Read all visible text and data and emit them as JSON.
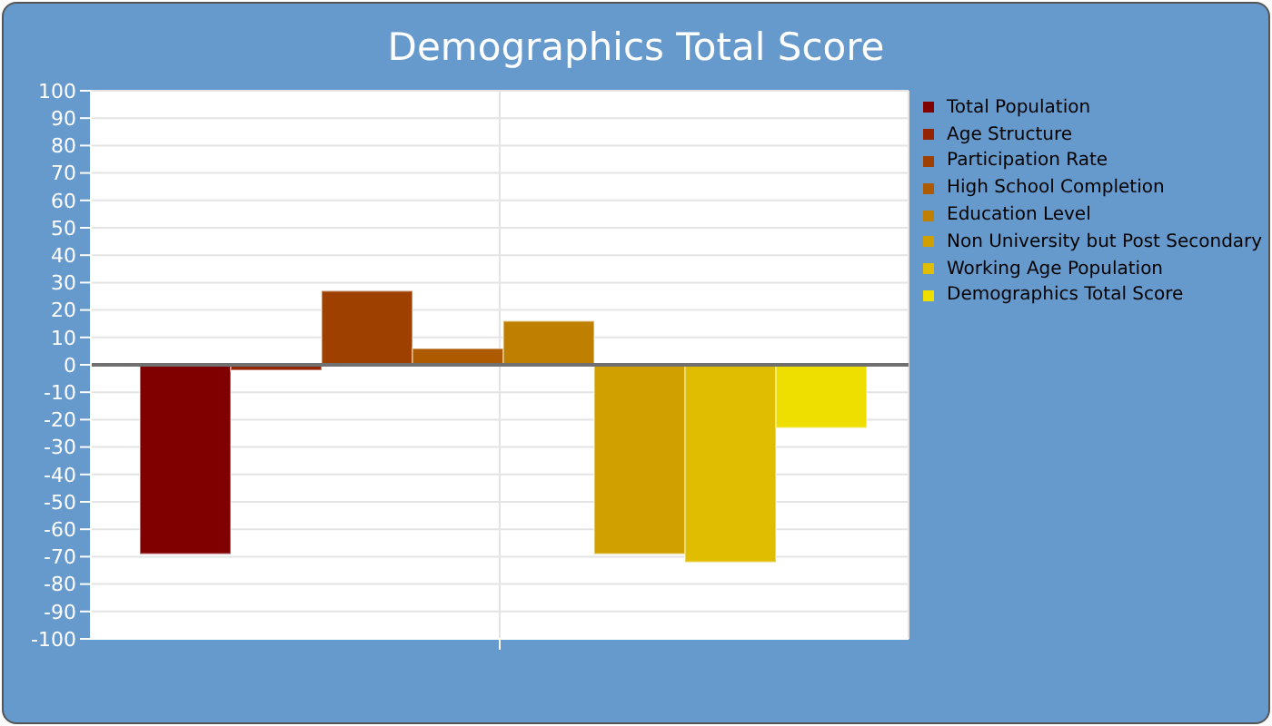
{
  "chart_data": {
    "type": "bar",
    "title": "Demographics Total Score",
    "categories": [
      null
    ],
    "series": [
      {
        "name": "Total Population",
        "color": "#800000",
        "values": [
          -69
        ]
      },
      {
        "name": "Age Structure",
        "color": "#952500",
        "values": [
          -2
        ]
      },
      {
        "name": "Participation Rate",
        "color": "#9e4000",
        "values": [
          27
        ]
      },
      {
        "name": "High School Completion",
        "color": "#ad5a00",
        "values": [
          6
        ]
      },
      {
        "name": "Education Level",
        "color": "#bf7f00",
        "values": [
          16
        ]
      },
      {
        "name": "Non University but Post Secondary",
        "color": "#d0a000",
        "values": [
          -69
        ]
      },
      {
        "name": "Working Age Population",
        "color": "#e0bd00",
        "values": [
          -72
        ]
      },
      {
        "name": "Demographics Total Score",
        "color": "#eedf00",
        "values": [
          -23
        ]
      }
    ],
    "ylim": [
      -100,
      100
    ],
    "yticks": [
      -100,
      -90,
      -80,
      -70,
      -60,
      -50,
      -40,
      -30,
      -20,
      -10,
      0,
      10,
      20,
      30,
      40,
      50,
      60,
      70,
      80,
      90,
      100
    ],
    "grid": true,
    "legend": "right",
    "ref_lines": [
      {
        "axis": "y",
        "value": 0,
        "color": "#707070"
      }
    ]
  }
}
